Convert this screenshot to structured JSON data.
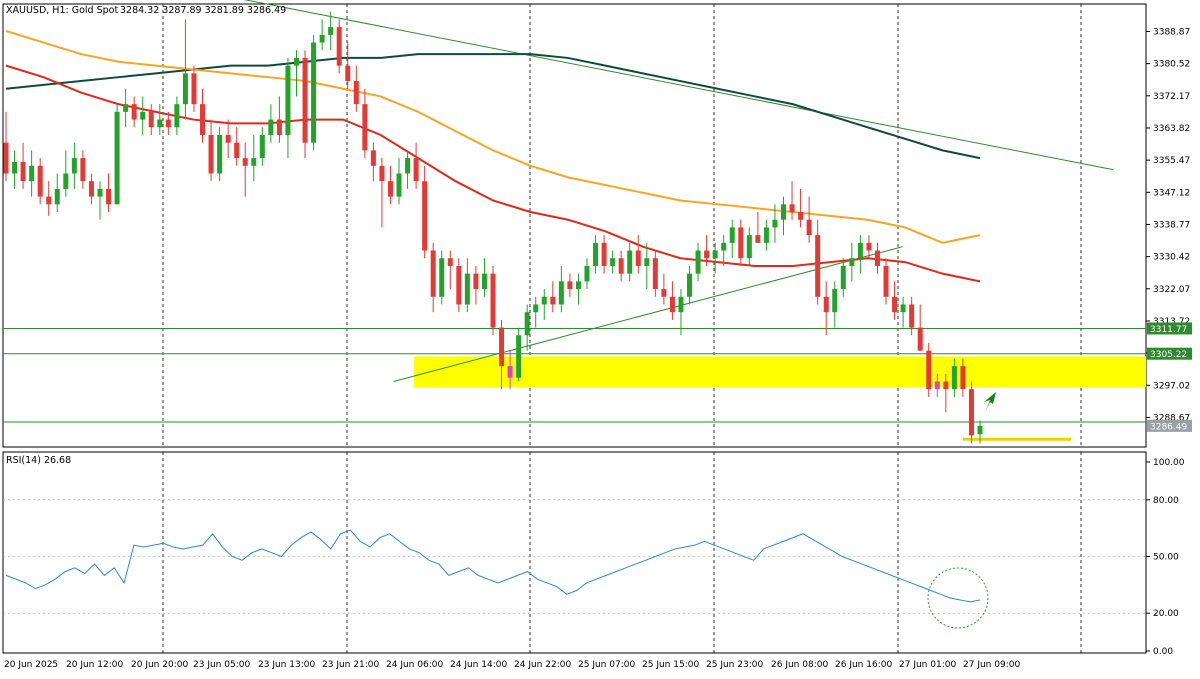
{
  "header": {
    "symbol": "XAUUSD, H1:  Gold Spot",
    "ohlc": "3284.32 3287.89 3281.89 3286.49"
  },
  "rsi_label": "RSI(14) 26.68",
  "colors": {
    "bull": "#22a32a",
    "bear": "#e53935",
    "highlight_candle": "#e040c8",
    "ma_fast": "#e0291c",
    "ma_mid": "#f5a623",
    "ma_slow": "#114a3a",
    "trendline": "#2e8b2e",
    "zone": "#ffff00",
    "rsi_line": "#2e86de",
    "arrow": "#1c7c1c"
  },
  "chart_data": [
    {
      "type": "candlestick",
      "title": "XAUUSD, H1: Gold Spot",
      "ylim": [
        3281.0,
        3396.0
      ],
      "y_ticks": [
        3388.87,
        3380.52,
        3372.17,
        3363.82,
        3355.47,
        3347.12,
        3338.77,
        3330.42,
        3322.07,
        3313.72,
        3305.37,
        3297.02,
        3288.67
      ],
      "price_labels": [
        {
          "value": 3311.77,
          "text": "3311.77",
          "kind": "level"
        },
        {
          "value": 3305.22,
          "text": "3305.22",
          "kind": "level"
        },
        {
          "value": 3286.49,
          "text": "3286.49",
          "kind": "current"
        }
      ],
      "x_labels": [
        "20 Jun 2025",
        "20 Jun 12:00",
        "20 Jun 20:00",
        "23 Jun 05:00",
        "23 Jun 13:00",
        "23 Jun 21:00",
        "24 Jun 06:00",
        "24 Jun 14:00",
        "24 Jun 22:00",
        "25 Jun 07:00",
        "25 Jun 15:00",
        "25 Jun 23:00",
        "26 Jun 08:00",
        "26 Jun 16:00",
        "27 Jun 01:00",
        "27 Jun 09:00"
      ],
      "candles": [
        {
          "o": 3360,
          "h": 3368,
          "l": 3350,
          "c": 3352
        },
        {
          "o": 3352,
          "h": 3358,
          "l": 3348,
          "c": 3355
        },
        {
          "o": 3355,
          "h": 3360,
          "l": 3348,
          "c": 3350
        },
        {
          "o": 3350,
          "h": 3358,
          "l": 3346,
          "c": 3354
        },
        {
          "o": 3354,
          "h": 3356,
          "l": 3344,
          "c": 3346
        },
        {
          "o": 3346,
          "h": 3350,
          "l": 3341,
          "c": 3344
        },
        {
          "o": 3344,
          "h": 3352,
          "l": 3342,
          "c": 3348
        },
        {
          "o": 3348,
          "h": 3358,
          "l": 3346,
          "c": 3352
        },
        {
          "o": 3352,
          "h": 3360,
          "l": 3348,
          "c": 3356
        },
        {
          "o": 3356,
          "h": 3358,
          "l": 3348,
          "c": 3350
        },
        {
          "o": 3350,
          "h": 3352,
          "l": 3344,
          "c": 3346
        },
        {
          "o": 3346,
          "h": 3350,
          "l": 3340,
          "c": 3348
        },
        {
          "o": 3348,
          "h": 3352,
          "l": 3342,
          "c": 3344
        },
        {
          "o": 3344,
          "h": 3370,
          "l": 3344,
          "c": 3368
        },
        {
          "o": 3368,
          "h": 3374,
          "l": 3364,
          "c": 3370
        },
        {
          "o": 3370,
          "h": 3372,
          "l": 3364,
          "c": 3366
        },
        {
          "o": 3366,
          "h": 3372,
          "l": 3362,
          "c": 3368
        },
        {
          "o": 3368,
          "h": 3370,
          "l": 3362,
          "c": 3364
        },
        {
          "o": 3364,
          "h": 3370,
          "l": 3362,
          "c": 3366
        },
        {
          "o": 3366,
          "h": 3368,
          "l": 3362,
          "c": 3364
        },
        {
          "o": 3364,
          "h": 3372,
          "l": 3362,
          "c": 3370
        },
        {
          "o": 3370,
          "h": 3392,
          "l": 3366,
          "c": 3378
        },
        {
          "o": 3378,
          "h": 3380,
          "l": 3368,
          "c": 3370
        },
        {
          "o": 3370,
          "h": 3374,
          "l": 3360,
          "c": 3362
        },
        {
          "o": 3362,
          "h": 3366,
          "l": 3350,
          "c": 3352
        },
        {
          "o": 3352,
          "h": 3364,
          "l": 3350,
          "c": 3362
        },
        {
          "o": 3362,
          "h": 3366,
          "l": 3356,
          "c": 3360
        },
        {
          "o": 3360,
          "h": 3364,
          "l": 3354,
          "c": 3356
        },
        {
          "o": 3356,
          "h": 3360,
          "l": 3346,
          "c": 3354
        },
        {
          "o": 3354,
          "h": 3362,
          "l": 3350,
          "c": 3356
        },
        {
          "o": 3356,
          "h": 3364,
          "l": 3354,
          "c": 3362
        },
        {
          "o": 3362,
          "h": 3370,
          "l": 3360,
          "c": 3366
        },
        {
          "o": 3366,
          "h": 3372,
          "l": 3360,
          "c": 3362
        },
        {
          "o": 3362,
          "h": 3382,
          "l": 3356,
          "c": 3380
        },
        {
          "o": 3380,
          "h": 3384,
          "l": 3372,
          "c": 3382
        },
        {
          "o": 3382,
          "h": 3384,
          "l": 3356,
          "c": 3360
        },
        {
          "o": 3360,
          "h": 3388,
          "l": 3358,
          "c": 3386
        },
        {
          "o": 3386,
          "h": 3392,
          "l": 3384,
          "c": 3388
        },
        {
          "o": 3388,
          "h": 3394,
          "l": 3384,
          "c": 3390
        },
        {
          "o": 3390,
          "h": 3392,
          "l": 3378,
          "c": 3380
        },
        {
          "o": 3380,
          "h": 3386,
          "l": 3374,
          "c": 3376
        },
        {
          "o": 3376,
          "h": 3380,
          "l": 3368,
          "c": 3370
        },
        {
          "o": 3370,
          "h": 3374,
          "l": 3356,
          "c": 3358
        },
        {
          "o": 3358,
          "h": 3360,
          "l": 3350,
          "c": 3354
        },
        {
          "o": 3354,
          "h": 3356,
          "l": 3338,
          "c": 3350
        },
        {
          "o": 3350,
          "h": 3354,
          "l": 3344,
          "c": 3346
        },
        {
          "o": 3346,
          "h": 3356,
          "l": 3344,
          "c": 3352
        },
        {
          "o": 3352,
          "h": 3358,
          "l": 3348,
          "c": 3356
        },
        {
          "o": 3356,
          "h": 3360,
          "l": 3348,
          "c": 3350
        },
        {
          "o": 3350,
          "h": 3354,
          "l": 3330,
          "c": 3332
        },
        {
          "o": 3332,
          "h": 3334,
          "l": 3316,
          "c": 3320
        },
        {
          "o": 3320,
          "h": 3332,
          "l": 3318,
          "c": 3330
        },
        {
          "o": 3330,
          "h": 3332,
          "l": 3322,
          "c": 3328
        },
        {
          "o": 3328,
          "h": 3330,
          "l": 3316,
          "c": 3318
        },
        {
          "o": 3318,
          "h": 3330,
          "l": 3316,
          "c": 3326
        },
        {
          "o": 3326,
          "h": 3328,
          "l": 3318,
          "c": 3322
        },
        {
          "o": 3322,
          "h": 3330,
          "l": 3320,
          "c": 3326
        },
        {
          "o": 3326,
          "h": 3328,
          "l": 3310,
          "c": 3312
        },
        {
          "o": 3312,
          "h": 3314,
          "l": 3296,
          "c": 3302
        },
        {
          "o": 3302,
          "h": 3306,
          "l": 3296,
          "c": 3299,
          "highlight": true
        },
        {
          "o": 3299,
          "h": 3312,
          "l": 3298,
          "c": 3310
        },
        {
          "o": 3310,
          "h": 3318,
          "l": 3306,
          "c": 3316
        },
        {
          "o": 3316,
          "h": 3320,
          "l": 3312,
          "c": 3318
        },
        {
          "o": 3318,
          "h": 3322,
          "l": 3314,
          "c": 3320
        },
        {
          "o": 3320,
          "h": 3324,
          "l": 3316,
          "c": 3318
        },
        {
          "o": 3318,
          "h": 3328,
          "l": 3316,
          "c": 3324
        },
        {
          "o": 3324,
          "h": 3326,
          "l": 3320,
          "c": 3322
        },
        {
          "o": 3322,
          "h": 3326,
          "l": 3318,
          "c": 3324
        },
        {
          "o": 3324,
          "h": 3330,
          "l": 3322,
          "c": 3328
        },
        {
          "o": 3328,
          "h": 3336,
          "l": 3326,
          "c": 3334
        },
        {
          "o": 3334,
          "h": 3336,
          "l": 3326,
          "c": 3328
        },
        {
          "o": 3328,
          "h": 3332,
          "l": 3326,
          "c": 3330
        },
        {
          "o": 3330,
          "h": 3332,
          "l": 3324,
          "c": 3326
        },
        {
          "o": 3326,
          "h": 3334,
          "l": 3324,
          "c": 3332
        },
        {
          "o": 3332,
          "h": 3336,
          "l": 3326,
          "c": 3328
        },
        {
          "o": 3328,
          "h": 3334,
          "l": 3322,
          "c": 3330
        },
        {
          "o": 3330,
          "h": 3332,
          "l": 3320,
          "c": 3322
        },
        {
          "o": 3322,
          "h": 3326,
          "l": 3318,
          "c": 3320
        },
        {
          "o": 3320,
          "h": 3324,
          "l": 3314,
          "c": 3316
        },
        {
          "o": 3316,
          "h": 3322,
          "l": 3310,
          "c": 3320
        },
        {
          "o": 3320,
          "h": 3328,
          "l": 3318,
          "c": 3326
        },
        {
          "o": 3326,
          "h": 3334,
          "l": 3324,
          "c": 3332
        },
        {
          "o": 3332,
          "h": 3336,
          "l": 3328,
          "c": 3330
        },
        {
          "o": 3330,
          "h": 3334,
          "l": 3326,
          "c": 3332
        },
        {
          "o": 3332,
          "h": 3336,
          "l": 3328,
          "c": 3334
        },
        {
          "o": 3334,
          "h": 3340,
          "l": 3330,
          "c": 3338
        },
        {
          "o": 3338,
          "h": 3340,
          "l": 3328,
          "c": 3330
        },
        {
          "o": 3330,
          "h": 3338,
          "l": 3328,
          "c": 3336
        },
        {
          "o": 3336,
          "h": 3342,
          "l": 3334,
          "c": 3334
        },
        {
          "o": 3334,
          "h": 3340,
          "l": 3332,
          "c": 3338
        },
        {
          "o": 3338,
          "h": 3344,
          "l": 3334,
          "c": 3340
        },
        {
          "o": 3340,
          "h": 3346,
          "l": 3336,
          "c": 3344
        },
        {
          "o": 3344,
          "h": 3350,
          "l": 3340,
          "c": 3342
        },
        {
          "o": 3342,
          "h": 3348,
          "l": 3338,
          "c": 3340
        },
        {
          "o": 3340,
          "h": 3346,
          "l": 3334,
          "c": 3336
        },
        {
          "o": 3336,
          "h": 3340,
          "l": 3318,
          "c": 3320
        },
        {
          "o": 3320,
          "h": 3324,
          "l": 3310,
          "c": 3316
        },
        {
          "o": 3316,
          "h": 3324,
          "l": 3312,
          "c": 3322
        },
        {
          "o": 3322,
          "h": 3330,
          "l": 3320,
          "c": 3328
        },
        {
          "o": 3328,
          "h": 3334,
          "l": 3324,
          "c": 3330
        },
        {
          "o": 3330,
          "h": 3336,
          "l": 3326,
          "c": 3334
        },
        {
          "o": 3334,
          "h": 3336,
          "l": 3330,
          "c": 3332
        },
        {
          "o": 3332,
          "h": 3334,
          "l": 3326,
          "c": 3328
        },
        {
          "o": 3328,
          "h": 3330,
          "l": 3318,
          "c": 3320
        },
        {
          "o": 3320,
          "h": 3324,
          "l": 3314,
          "c": 3316
        },
        {
          "o": 3316,
          "h": 3320,
          "l": 3312,
          "c": 3318
        },
        {
          "o": 3318,
          "h": 3320,
          "l": 3310,
          "c": 3312
        },
        {
          "o": 3312,
          "h": 3318,
          "l": 3306,
          "c": 3306
        },
        {
          "o": 3306,
          "h": 3308,
          "l": 3294,
          "c": 3296
        },
        {
          "o": 3296,
          "h": 3300,
          "l": 3294,
          "c": 3298,
          "highlight": true
        },
        {
          "o": 3298,
          "h": 3300,
          "l": 3290,
          "c": 3296
        },
        {
          "o": 3296,
          "h": 3304,
          "l": 3294,
          "c": 3302
        },
        {
          "o": 3302,
          "h": 3304,
          "l": 3294,
          "c": 3296
        },
        {
          "o": 3296,
          "h": 3298,
          "l": 3282,
          "c": 3284
        },
        {
          "o": 3284.32,
          "h": 3287.89,
          "l": 3281.89,
          "c": 3286.49
        }
      ],
      "moving_averages": [
        {
          "color": "ma_slow",
          "values": [
            3374,
            3375,
            3376,
            3377,
            3378,
            3379,
            3380,
            3380,
            3381,
            3382,
            3382,
            3383,
            3383,
            3383,
            3383,
            3382,
            3380,
            3378,
            3376,
            3374,
            3372,
            3370,
            3367,
            3364,
            3361,
            3358,
            3356
          ]
        },
        {
          "color": "ma_mid",
          "values": [
            3389,
            3386,
            3383,
            3381,
            3380,
            3379,
            3378,
            3377,
            3376,
            3374,
            3372,
            3368,
            3363,
            3358,
            3354,
            3351,
            3349,
            3347,
            3345,
            3344,
            3343,
            3342,
            3341,
            3340,
            3338,
            3334,
            3336
          ]
        },
        {
          "color": "ma_fast",
          "values": [
            3380,
            3377,
            3373,
            3370,
            3368,
            3366,
            3365,
            3365,
            3366,
            3366,
            3362,
            3356,
            3350,
            3345,
            3342,
            3340,
            3337,
            3333,
            3330,
            3329,
            3328,
            3328,
            3329,
            3330,
            3329,
            3326,
            3324
          ]
        }
      ],
      "trendlines": [
        {
          "from": [
            0.2,
            3398
          ],
          "to": [
            1.0,
            3353
          ]
        },
        {
          "from": [
            0.35,
            3298
          ],
          "to": [
            0.81,
            3333
          ]
        }
      ],
      "zones": [
        {
          "from_index": 48,
          "top": 3304.5,
          "bottom": 3296.5
        }
      ],
      "support_lines": [
        {
          "value": 3311.77
        },
        {
          "value": 3305.22
        },
        {
          "value": 3287.5
        }
      ]
    },
    {
      "type": "line",
      "title": "RSI(14) 26.68",
      "ylim": [
        0,
        100
      ],
      "y_ticks": [
        100.0,
        80.0,
        50.0,
        20.0,
        0.0
      ],
      "y_tick_labels": [
        "100.00",
        "80.00",
        "50.00",
        "20.00",
        "0.00"
      ],
      "values": [
        40,
        38,
        36,
        33,
        35,
        38,
        42,
        44,
        41,
        46,
        40,
        44,
        36,
        56,
        55,
        56,
        57,
        55,
        54,
        55,
        56,
        62,
        55,
        50,
        48,
        52,
        54,
        52,
        50,
        56,
        60,
        63,
        59,
        54,
        62,
        64,
        58,
        55,
        60,
        62,
        58,
        54,
        52,
        48,
        46,
        40,
        42,
        44,
        40,
        38,
        36,
        38,
        40,
        42,
        38,
        36,
        34,
        30,
        32,
        36,
        38,
        40,
        42,
        44,
        46,
        48,
        50,
        52,
        54,
        55,
        56,
        58,
        56,
        54,
        52,
        50,
        48,
        54,
        56,
        58,
        60,
        62,
        59,
        56,
        53,
        50,
        48,
        46,
        44,
        42,
        40,
        38,
        36,
        34,
        32,
        30,
        28,
        27,
        26,
        27
      ]
    }
  ]
}
